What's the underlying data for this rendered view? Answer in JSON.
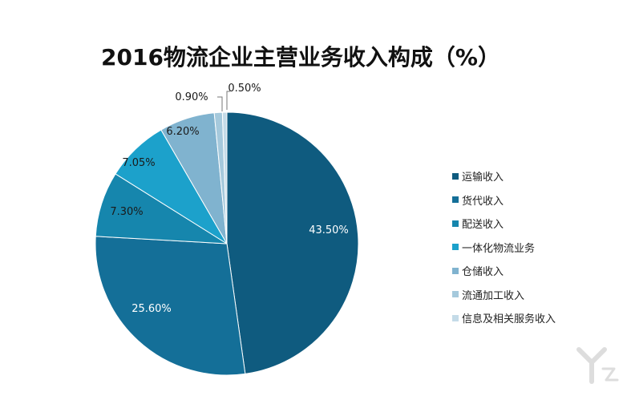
{
  "chart_data": {
    "type": "pie",
    "title": "2016物流企业主营业务收入构成（%）",
    "slices": [
      {
        "label": "运输收入",
        "value": 43.5,
        "display": "43.50%",
        "color": "#0f5b7f"
      },
      {
        "label": "货代收入",
        "value": 25.6,
        "display": "25.60%",
        "color": "#146f98"
      },
      {
        "label": "配送收入",
        "value": 7.3,
        "display": "7.30%",
        "color": "#1686ad"
      },
      {
        "label": "一体化物流业务",
        "value": 7.05,
        "display": "7.05%",
        "color": "#1ca1cb"
      },
      {
        "label": "仓储收入",
        "value": 6.2,
        "display": "6.20%",
        "color": "#80b3cf"
      },
      {
        "label": "流通加工收入",
        "value": 0.9,
        "display": "0.90%",
        "color": "#a5c9dc"
      },
      {
        "label": "信息及相关服务收入",
        "value": 0.5,
        "display": "0.50%",
        "color": "#c4dbe8"
      }
    ],
    "legend_position": "right"
  }
}
